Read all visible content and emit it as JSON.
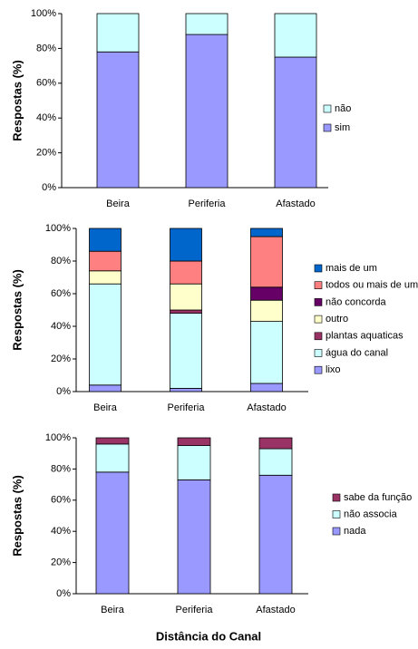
{
  "chart_data": [
    {
      "type": "stacked_bar",
      "y_label": "Respostas (%)",
      "categories": [
        "Beira",
        "Periferia",
        "Afastado"
      ],
      "series": [
        {
          "name": "sim",
          "color": "#9999ff",
          "values": [
            78,
            88,
            75
          ]
        },
        {
          "name": "não",
          "color": "#ccffff",
          "values": [
            22,
            12,
            25
          ]
        }
      ],
      "ylim": [
        0,
        100
      ],
      "yticks": [
        {
          "value": 0,
          "label": "0%"
        },
        {
          "value": 20,
          "label": "20%"
        },
        {
          "value": 40,
          "label": "40%"
        },
        {
          "value": 60,
          "label": "60%"
        },
        {
          "value": 80,
          "label": "80%"
        },
        {
          "value": 100,
          "label": "100%"
        }
      ]
    },
    {
      "type": "stacked_bar",
      "y_label": "Respostas (%)",
      "categories": [
        "Beira",
        "Periferia",
        "Afastado"
      ],
      "series": [
        {
          "name": "lixo",
          "color": "#9999ff",
          "values": [
            4,
            2,
            5
          ]
        },
        {
          "name": "água do canal",
          "color": "#ccffff",
          "values": [
            62,
            46,
            38
          ]
        },
        {
          "name": "plantas aquaticas",
          "color": "#993366",
          "values": [
            0,
            2,
            0
          ]
        },
        {
          "name": "outro",
          "color": "#ffffcc",
          "values": [
            8,
            16,
            13
          ]
        },
        {
          "name": "não concorda",
          "color": "#660066",
          "values": [
            0,
            0,
            8
          ]
        },
        {
          "name": "todos ou mais de um",
          "color": "#ff8080",
          "values": [
            12,
            14,
            31
          ]
        },
        {
          "name": "mais de um",
          "color": "#0066cc",
          "values": [
            14,
            20,
            5
          ]
        }
      ],
      "ylim": [
        0,
        100
      ],
      "yticks": [
        {
          "value": 0,
          "label": "0%"
        },
        {
          "value": 20,
          "label": "20%"
        },
        {
          "value": 40,
          "label": "40%"
        },
        {
          "value": 60,
          "label": "60%"
        },
        {
          "value": 80,
          "label": "80%"
        },
        {
          "value": 100,
          "label": "100%"
        }
      ]
    },
    {
      "type": "stacked_bar",
      "y_label": "Respostas (%)",
      "x_label": "Distância do Canal",
      "categories": [
        "Beira",
        "Periferia",
        "Afastado"
      ],
      "series": [
        {
          "name": "nada",
          "color": "#9999ff",
          "values": [
            78,
            73,
            76
          ]
        },
        {
          "name": "não associa",
          "color": "#ccffff",
          "values": [
            18,
            22,
            17
          ]
        },
        {
          "name": "sabe da função",
          "color": "#993366",
          "values": [
            4,
            5,
            7
          ]
        }
      ],
      "ylim": [
        0,
        100
      ],
      "yticks": [
        {
          "value": 0,
          "label": "0%"
        },
        {
          "value": 20,
          "label": "20%"
        },
        {
          "value": 40,
          "label": "40%"
        },
        {
          "value": 60,
          "label": "60%"
        },
        {
          "value": 80,
          "label": "80%"
        },
        {
          "value": 100,
          "label": "100%"
        }
      ]
    }
  ]
}
